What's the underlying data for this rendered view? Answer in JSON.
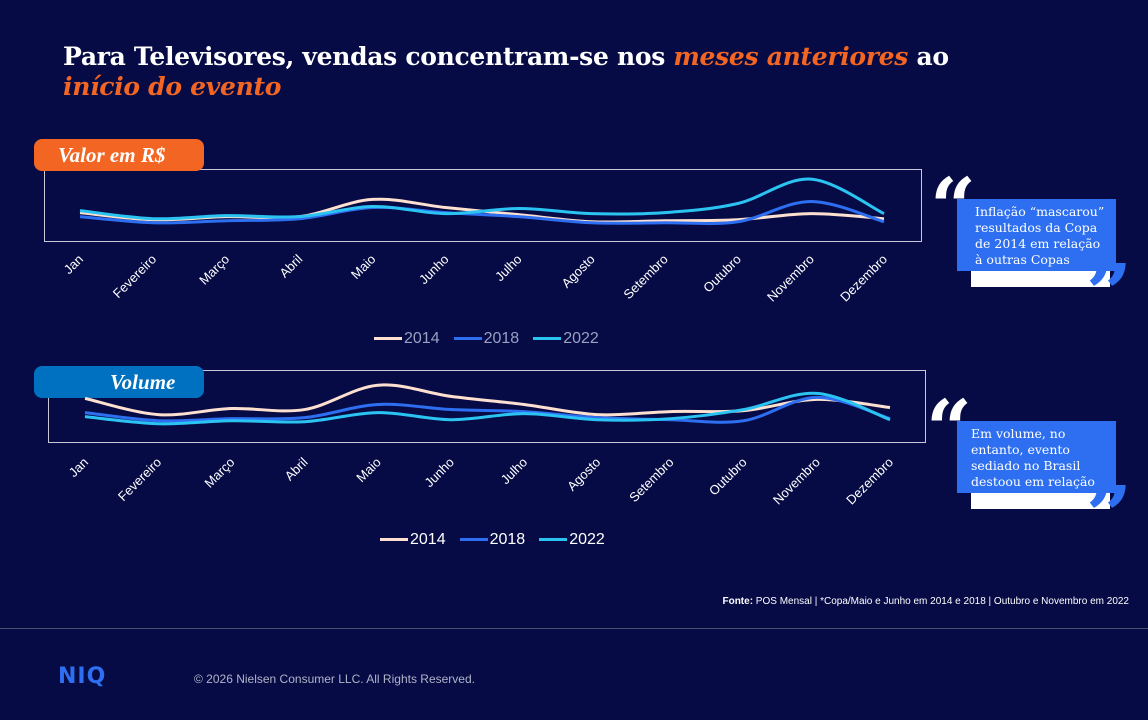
{
  "title": {
    "part1": "Para Televisores, vendas concentram-se nos ",
    "highlight1": "meses anteriores",
    "part2": " ao ",
    "highlight2": "início do evento"
  },
  "colors": {
    "background": "#060b45",
    "accent_orange": "#f26522",
    "accent_blue": "#0070c0",
    "quote_blue": "#2d6ff0",
    "s2014": "#fde0d0",
    "s2018": "#2d6ff0",
    "s2022": "#2bc4f2"
  },
  "chart_data": [
    {
      "type": "line",
      "title": "Valor em R$",
      "categories": [
        "Jan",
        "Fevereiro",
        "Março",
        "Abril",
        "Maio",
        "Junho",
        "Julho",
        "Agosto",
        "Setembro",
        "Outubro",
        "Novembro",
        "Dezembro"
      ],
      "ylim": [
        0,
        70
      ],
      "y_axis_visible": false,
      "grid": false,
      "legend": "bottom",
      "series": [
        {
          "name": "2014",
          "values": [
            27,
            20,
            23,
            23,
            40,
            32,
            25,
            18,
            19,
            20,
            26,
            21
          ]
        },
        {
          "name": "2018",
          "values": [
            23,
            17,
            19,
            21,
            32,
            27,
            23,
            17,
            17,
            18,
            38,
            18
          ]
        },
        {
          "name": "2022",
          "values": [
            29,
            21,
            24,
            23,
            33,
            26,
            31,
            26,
            27,
            36,
            60,
            26
          ]
        }
      ]
    },
    {
      "type": "line",
      "title": "Volume",
      "categories": [
        "Jan",
        "Fevereiro",
        "Março",
        "Abril",
        "Maio",
        "Junho",
        "Julho",
        "Agosto",
        "Setembro",
        "Outubro",
        "Novembro",
        "Dezembro"
      ],
      "ylim": [
        0,
        70
      ],
      "y_axis_visible": false,
      "grid": false,
      "legend": "bottom",
      "series": [
        {
          "name": "2014",
          "values": [
            42,
            26,
            32,
            31,
            55,
            44,
            36,
            26,
            29,
            30,
            41,
            33
          ]
        },
        {
          "name": "2018",
          "values": [
            28,
            20,
            22,
            23,
            36,
            31,
            29,
            23,
            21,
            20,
            43,
            22
          ]
        },
        {
          "name": "2022",
          "values": [
            24,
            17,
            20,
            19,
            28,
            21,
            27,
            21,
            22,
            31,
            47,
            21
          ]
        }
      ]
    }
  ],
  "quotes": [
    "Inflação “mascarou” resultados da Copa de 2014 em relação à outras Copas",
    "Em volume, no entanto, evento sediado no Brasil destoou em relação aos demais anos"
  ],
  "source": {
    "label": "Fonte:",
    "text": " POS Mensal | *Copa/Maio e Junho em 2014 e 2018 | Outubro e Novembro  em 2022"
  },
  "footer": {
    "logo": "NIQ",
    "copyright": "© 2026 Nielsen Consumer LLC. All Rights Reserved."
  }
}
